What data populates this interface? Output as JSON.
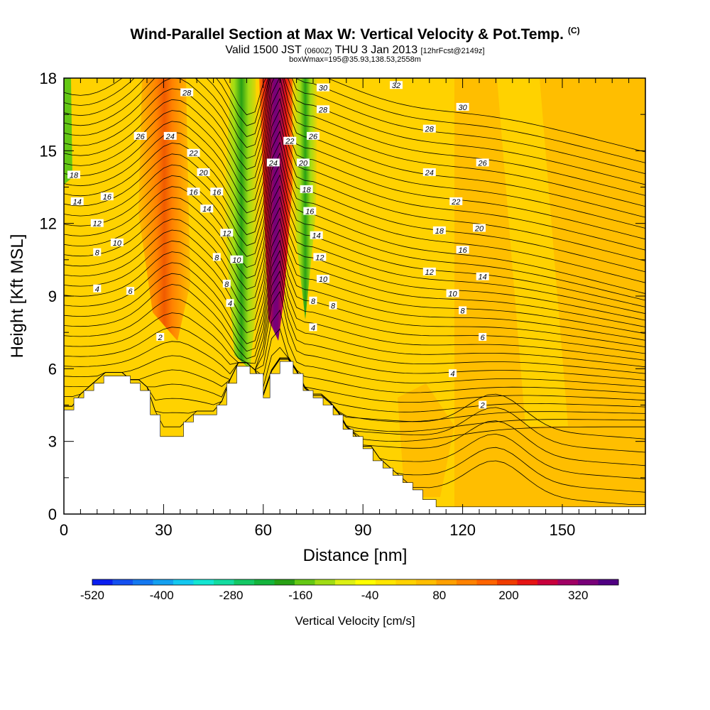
{
  "header": {
    "title": "Wind-Parallel Section at Max W: Vertical Velocity & Pot.Temp.",
    "title_mark": "(C)",
    "subtitle_main": "Valid 1500 JST",
    "subtitle_zulu": "(0600Z)",
    "subtitle_date": "THU 3 Jan 2013",
    "subtitle_fcst": "[12hrFcst@2149z]",
    "subtitle_box": "boxWmax=195@35.93,138.53,2558m"
  },
  "chart_data": {
    "type": "contour",
    "xlabel": "Distance [nm]",
    "ylabel": "Height [Kft MSL]",
    "xlim": [
      0,
      175
    ],
    "ylim": [
      0,
      18
    ],
    "x_ticks": [
      "0",
      "30",
      "60",
      "90",
      "120",
      "150"
    ],
    "x_tick_values": [
      0,
      30,
      60,
      90,
      120,
      150
    ],
    "y_ticks": [
      "0",
      "3",
      "6",
      "9",
      "12",
      "15",
      "18"
    ],
    "y_tick_values": [
      0,
      3,
      6,
      9,
      12,
      15,
      18
    ],
    "terrain": {
      "x": [
        0,
        3,
        3,
        6,
        6,
        9,
        9,
        12,
        12,
        15,
        15,
        20,
        20,
        23,
        23,
        26,
        26,
        29,
        29,
        33,
        33,
        36,
        36,
        39,
        39,
        43,
        43,
        46,
        46,
        49,
        49,
        52,
        52,
        56,
        56,
        60,
        60,
        62,
        62,
        65,
        65,
        69,
        69,
        72,
        72,
        75,
        75,
        78,
        78,
        81,
        81,
        84,
        84,
        87,
        87,
        90,
        90,
        93,
        93,
        96,
        96,
        99,
        99,
        102,
        102,
        105,
        105,
        108,
        108,
        112,
        112,
        175
      ],
      "height_kft": [
        4.3,
        4.3,
        4.8,
        4.8,
        5.1,
        5.1,
        5.4,
        5.4,
        5.7,
        5.7,
        5.7,
        5.7,
        5.4,
        5.4,
        5.1,
        5.1,
        4.1,
        4.1,
        3.2,
        3.2,
        3.2,
        3.2,
        3.8,
        3.8,
        4.1,
        4.1,
        4.1,
        4.1,
        4.5,
        4.5,
        5.4,
        5.4,
        6.1,
        6.1,
        5.8,
        5.8,
        4.8,
        4.8,
        5.8,
        5.8,
        6.3,
        6.3,
        5.8,
        5.8,
        5.1,
        5.1,
        4.8,
        4.8,
        4.5,
        4.5,
        4.1,
        4.1,
        3.5,
        3.5,
        3.2,
        3.2,
        2.7,
        2.7,
        2.2,
        2.2,
        1.9,
        1.9,
        1.6,
        1.6,
        1.3,
        1.3,
        1.0,
        1.0,
        0.6,
        0.6,
        0.3,
        0.3
      ]
    },
    "velocity_features": [
      {
        "name": "ascent-core",
        "x": 64,
        "y_bottom": 7,
        "y_top": 18,
        "value": 320
      },
      {
        "name": "descent-band",
        "x": 54,
        "y_bottom": 6,
        "y_top": 18,
        "value": -160
      },
      {
        "name": "descent-band-east",
        "x": 72,
        "y_bottom": 9,
        "y_top": 18,
        "value": -120
      },
      {
        "name": "ascent-west",
        "x": 33,
        "y_bottom": 8,
        "y_top": 18,
        "value": 80
      }
    ],
    "theta_levels": [
      2,
      4,
      6,
      8,
      10,
      12,
      14,
      16,
      18,
      20,
      22,
      24,
      26,
      28,
      30,
      32
    ],
    "theta_labels": [
      {
        "text": "28",
        "x": 37,
        "y": 17.4
      },
      {
        "text": "26",
        "x": 23,
        "y": 15.6
      },
      {
        "text": "24",
        "x": 32,
        "y": 15.6
      },
      {
        "text": "22",
        "x": 39,
        "y": 14.9
      },
      {
        "text": "20",
        "x": 42,
        "y": 14.1
      },
      {
        "text": "18",
        "x": 3,
        "y": 14.0
      },
      {
        "text": "16",
        "x": 39,
        "y": 13.3
      },
      {
        "text": "16",
        "x": 46,
        "y": 13.3
      },
      {
        "text": "16",
        "x": 13,
        "y": 13.1
      },
      {
        "text": "14",
        "x": 4,
        "y": 12.9
      },
      {
        "text": "14",
        "x": 43,
        "y": 12.6
      },
      {
        "text": "12",
        "x": 10,
        "y": 12.0
      },
      {
        "text": "12",
        "x": 49,
        "y": 11.6
      },
      {
        "text": "10",
        "x": 16,
        "y": 11.2
      },
      {
        "text": "8",
        "x": 10,
        "y": 10.8
      },
      {
        "text": "8",
        "x": 46,
        "y": 10.6
      },
      {
        "text": "10",
        "x": 52,
        "y": 10.5
      },
      {
        "text": "8",
        "x": 49,
        "y": 9.5
      },
      {
        "text": "4",
        "x": 10,
        "y": 9.3
      },
      {
        "text": "6",
        "x": 20,
        "y": 9.2
      },
      {
        "text": "4",
        "x": 50,
        "y": 8.7
      },
      {
        "text": "2",
        "x": 29,
        "y": 7.3
      },
      {
        "text": "24",
        "x": 63,
        "y": 14.5
      },
      {
        "text": "22",
        "x": 68,
        "y": 15.4
      },
      {
        "text": "30",
        "x": 78,
        "y": 17.6
      },
      {
        "text": "28",
        "x": 78,
        "y": 16.7
      },
      {
        "text": "26",
        "x": 75,
        "y": 15.6
      },
      {
        "text": "20",
        "x": 72,
        "y": 14.5
      },
      {
        "text": "18",
        "x": 73,
        "y": 13.4
      },
      {
        "text": "16",
        "x": 74,
        "y": 12.5
      },
      {
        "text": "14",
        "x": 76,
        "y": 11.5
      },
      {
        "text": "12",
        "x": 77,
        "y": 10.6
      },
      {
        "text": "10",
        "x": 78,
        "y": 9.7
      },
      {
        "text": "8",
        "x": 75,
        "y": 8.8
      },
      {
        "text": "8",
        "x": 81,
        "y": 8.6
      },
      {
        "text": "4",
        "x": 75,
        "y": 7.7
      },
      {
        "text": "32",
        "x": 100,
        "y": 17.7
      },
      {
        "text": "30",
        "x": 120,
        "y": 16.8
      },
      {
        "text": "28",
        "x": 110,
        "y": 15.9
      },
      {
        "text": "26",
        "x": 126,
        "y": 14.5
      },
      {
        "text": "24",
        "x": 110,
        "y": 14.1
      },
      {
        "text": "22",
        "x": 118,
        "y": 12.9
      },
      {
        "text": "20",
        "x": 125,
        "y": 11.8
      },
      {
        "text": "18",
        "x": 113,
        "y": 11.7
      },
      {
        "text": "16",
        "x": 120,
        "y": 10.9
      },
      {
        "text": "14",
        "x": 126,
        "y": 9.8
      },
      {
        "text": "12",
        "x": 110,
        "y": 10.0
      },
      {
        "text": "10",
        "x": 117,
        "y": 9.1
      },
      {
        "text": "8",
        "x": 120,
        "y": 8.4
      },
      {
        "text": "6",
        "x": 126,
        "y": 7.3
      },
      {
        "text": "4",
        "x": 117,
        "y": 5.8
      },
      {
        "text": "2",
        "x": 126,
        "y": 4.5
      }
    ],
    "colorbar": {
      "label": "Vertical Velocity [cm/s]",
      "tick_labels": [
        "-520",
        "-400",
        "-280",
        "-160",
        "-40",
        "80",
        "200",
        "320"
      ],
      "colors": [
        "#0a1ef0",
        "#1450f0",
        "#1478f0",
        "#14a0f0",
        "#14c8f0",
        "#14e6d2",
        "#14dca0",
        "#14c864",
        "#14b43c",
        "#28a014",
        "#64c814",
        "#a0dc14",
        "#dcf014",
        "#ffff00",
        "#ffe600",
        "#ffd200",
        "#ffbe00",
        "#ffa000",
        "#ff8200",
        "#ff6400",
        "#f03c00",
        "#e61414",
        "#c8003c",
        "#a00064",
        "#780078",
        "#500082"
      ]
    }
  }
}
